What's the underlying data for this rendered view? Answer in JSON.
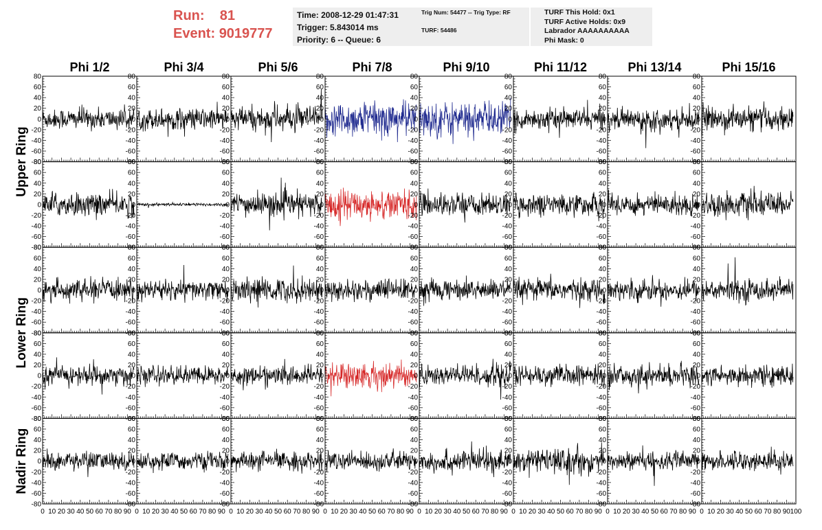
{
  "header": {
    "run_label": "Run:",
    "run_value": "81",
    "event_label": "Event:",
    "event_value": "9019777",
    "time": "Time: 2008-12-29 01:47:31",
    "trigger": "Trigger: 5.843014 ms",
    "priority": "Priority: 6 -- Queue: 6",
    "trig_num": "Trig Num: 54477 -- Trig Type: RF",
    "turf": "TURF: 54486",
    "turf_this_hold": "TURF This Hold: 0x1",
    "turf_active_holds": "TURF Active Holds: 0x9",
    "labrador": "Labrador AAAAAAAAAA",
    "phi_mask": "Phi Mask: 0"
  },
  "colors": {
    "normal": "#000000",
    "triggered_blue": "#1f2a8f",
    "triggered_red": "#d62828"
  },
  "chart_data": {
    "type": "line",
    "columns": [
      "Phi 1/2",
      "Phi 3/4",
      "Phi 5/6",
      "Phi 7/8",
      "Phi 9/10",
      "Phi 11/12",
      "Phi 13/14",
      "Phi 15/16"
    ],
    "ring_labels": [
      "Upper Ring",
      "Lower Ring",
      "Nadir Ring"
    ],
    "xlim": [
      0,
      100
    ],
    "ylim": [
      -80,
      80
    ],
    "x_ticks": [
      "0",
      "10",
      "20",
      "30",
      "40",
      "50",
      "60",
      "70",
      "80",
      "90",
      "100"
    ],
    "y_ticks": [
      "80",
      "60",
      "40",
      "20",
      "0",
      "-20",
      "-40",
      "-60",
      "-80"
    ],
    "grid": false,
    "rows": [
      {
        "amps": [
          13,
          14,
          16,
          23,
          22,
          13,
          13,
          15
        ],
        "colors": [
          "normal",
          "normal",
          "normal",
          "triggered_blue",
          "triggered_blue",
          "normal",
          "normal",
          "normal"
        ]
      },
      {
        "amps": [
          15,
          2,
          15,
          19,
          14,
          14,
          14,
          15
        ],
        "colors": [
          "normal",
          "normal",
          "normal",
          "triggered_red",
          "normal",
          "normal",
          "normal",
          "normal"
        ]
      },
      {
        "amps": [
          13,
          13,
          15,
          14,
          13,
          14,
          13,
          14
        ],
        "colors": [
          "normal",
          "normal",
          "normal",
          "normal",
          "normal",
          "normal",
          "normal",
          "normal"
        ]
      },
      {
        "amps": [
          13,
          12,
          12,
          17,
          14,
          13,
          13,
          13
        ],
        "colors": [
          "normal",
          "normal",
          "normal",
          "triggered_red",
          "normal",
          "normal",
          "normal",
          "normal"
        ]
      },
      {
        "amps": [
          12,
          11,
          12,
          12,
          14,
          15,
          12,
          12
        ],
        "colors": [
          "normal",
          "normal",
          "normal",
          "normal",
          "normal",
          "normal",
          "normal",
          "normal"
        ]
      }
    ]
  }
}
